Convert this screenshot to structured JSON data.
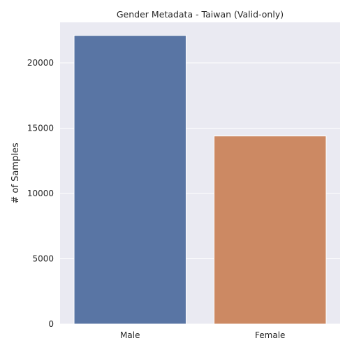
{
  "chart_data": {
    "type": "bar",
    "title": "Gender Metadata - Taiwan (Valid-only)",
    "xlabel": "",
    "ylabel": "# of Samples",
    "categories": [
      "Male",
      "Female"
    ],
    "values": [
      22100,
      14400
    ],
    "ylim": [
      0,
      23100
    ],
    "yticks": [
      0,
      5000,
      10000,
      15000,
      20000
    ],
    "colors": [
      "#5975a4",
      "#cc8963"
    ],
    "background": "#eaeaf2",
    "grid": true,
    "legend": "none"
  }
}
